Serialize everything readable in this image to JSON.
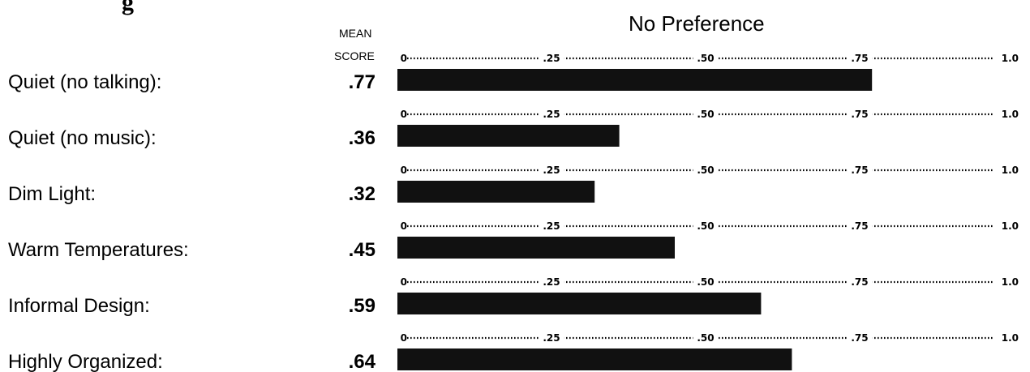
{
  "title_partial": "g",
  "header": {
    "center": "No Preference",
    "mean_label": "MEAN",
    "score_label": "SCORE"
  },
  "chart_data": {
    "type": "bar",
    "orientation": "horizontal",
    "categories": [
      "Quiet (no talking):",
      "Quiet (no music):",
      "Dim Light:",
      "Warm Temperatures:",
      "Informal Design:",
      "Highly Organized:"
    ],
    "values": [
      0.77,
      0.36,
      0.32,
      0.45,
      0.59,
      0.64
    ],
    "value_labels": [
      ".77",
      ".36",
      ".32",
      ".45",
      ".59",
      ".64"
    ],
    "xlim": [
      0,
      1.0
    ],
    "scale_tick_labels": [
      "0",
      ".25",
      ".50",
      ".75",
      "1.0"
    ],
    "bar_color": "#111111"
  }
}
